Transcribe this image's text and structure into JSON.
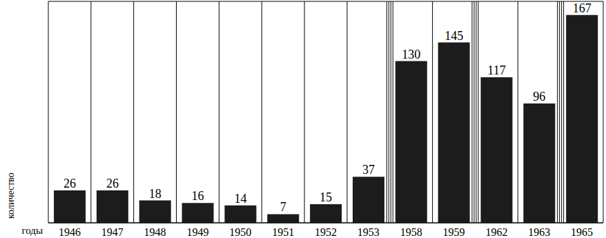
{
  "chart_data": {
    "type": "bar",
    "x_label": "годы",
    "y_label": "количество",
    "categories": [
      "1946",
      "1947",
      "1948",
      "1949",
      "1950",
      "1951",
      "1952",
      "1953",
      "1958",
      "1959",
      "1962",
      "1963",
      "1965"
    ],
    "values": [
      26,
      26,
      18,
      16,
      14,
      7,
      15,
      37,
      130,
      145,
      117,
      96,
      167
    ],
    "color": "#1c1c1c",
    "ylim": [
      0,
      178
    ],
    "grid": true,
    "data_labels": true,
    "tick_labels": "x"
  }
}
